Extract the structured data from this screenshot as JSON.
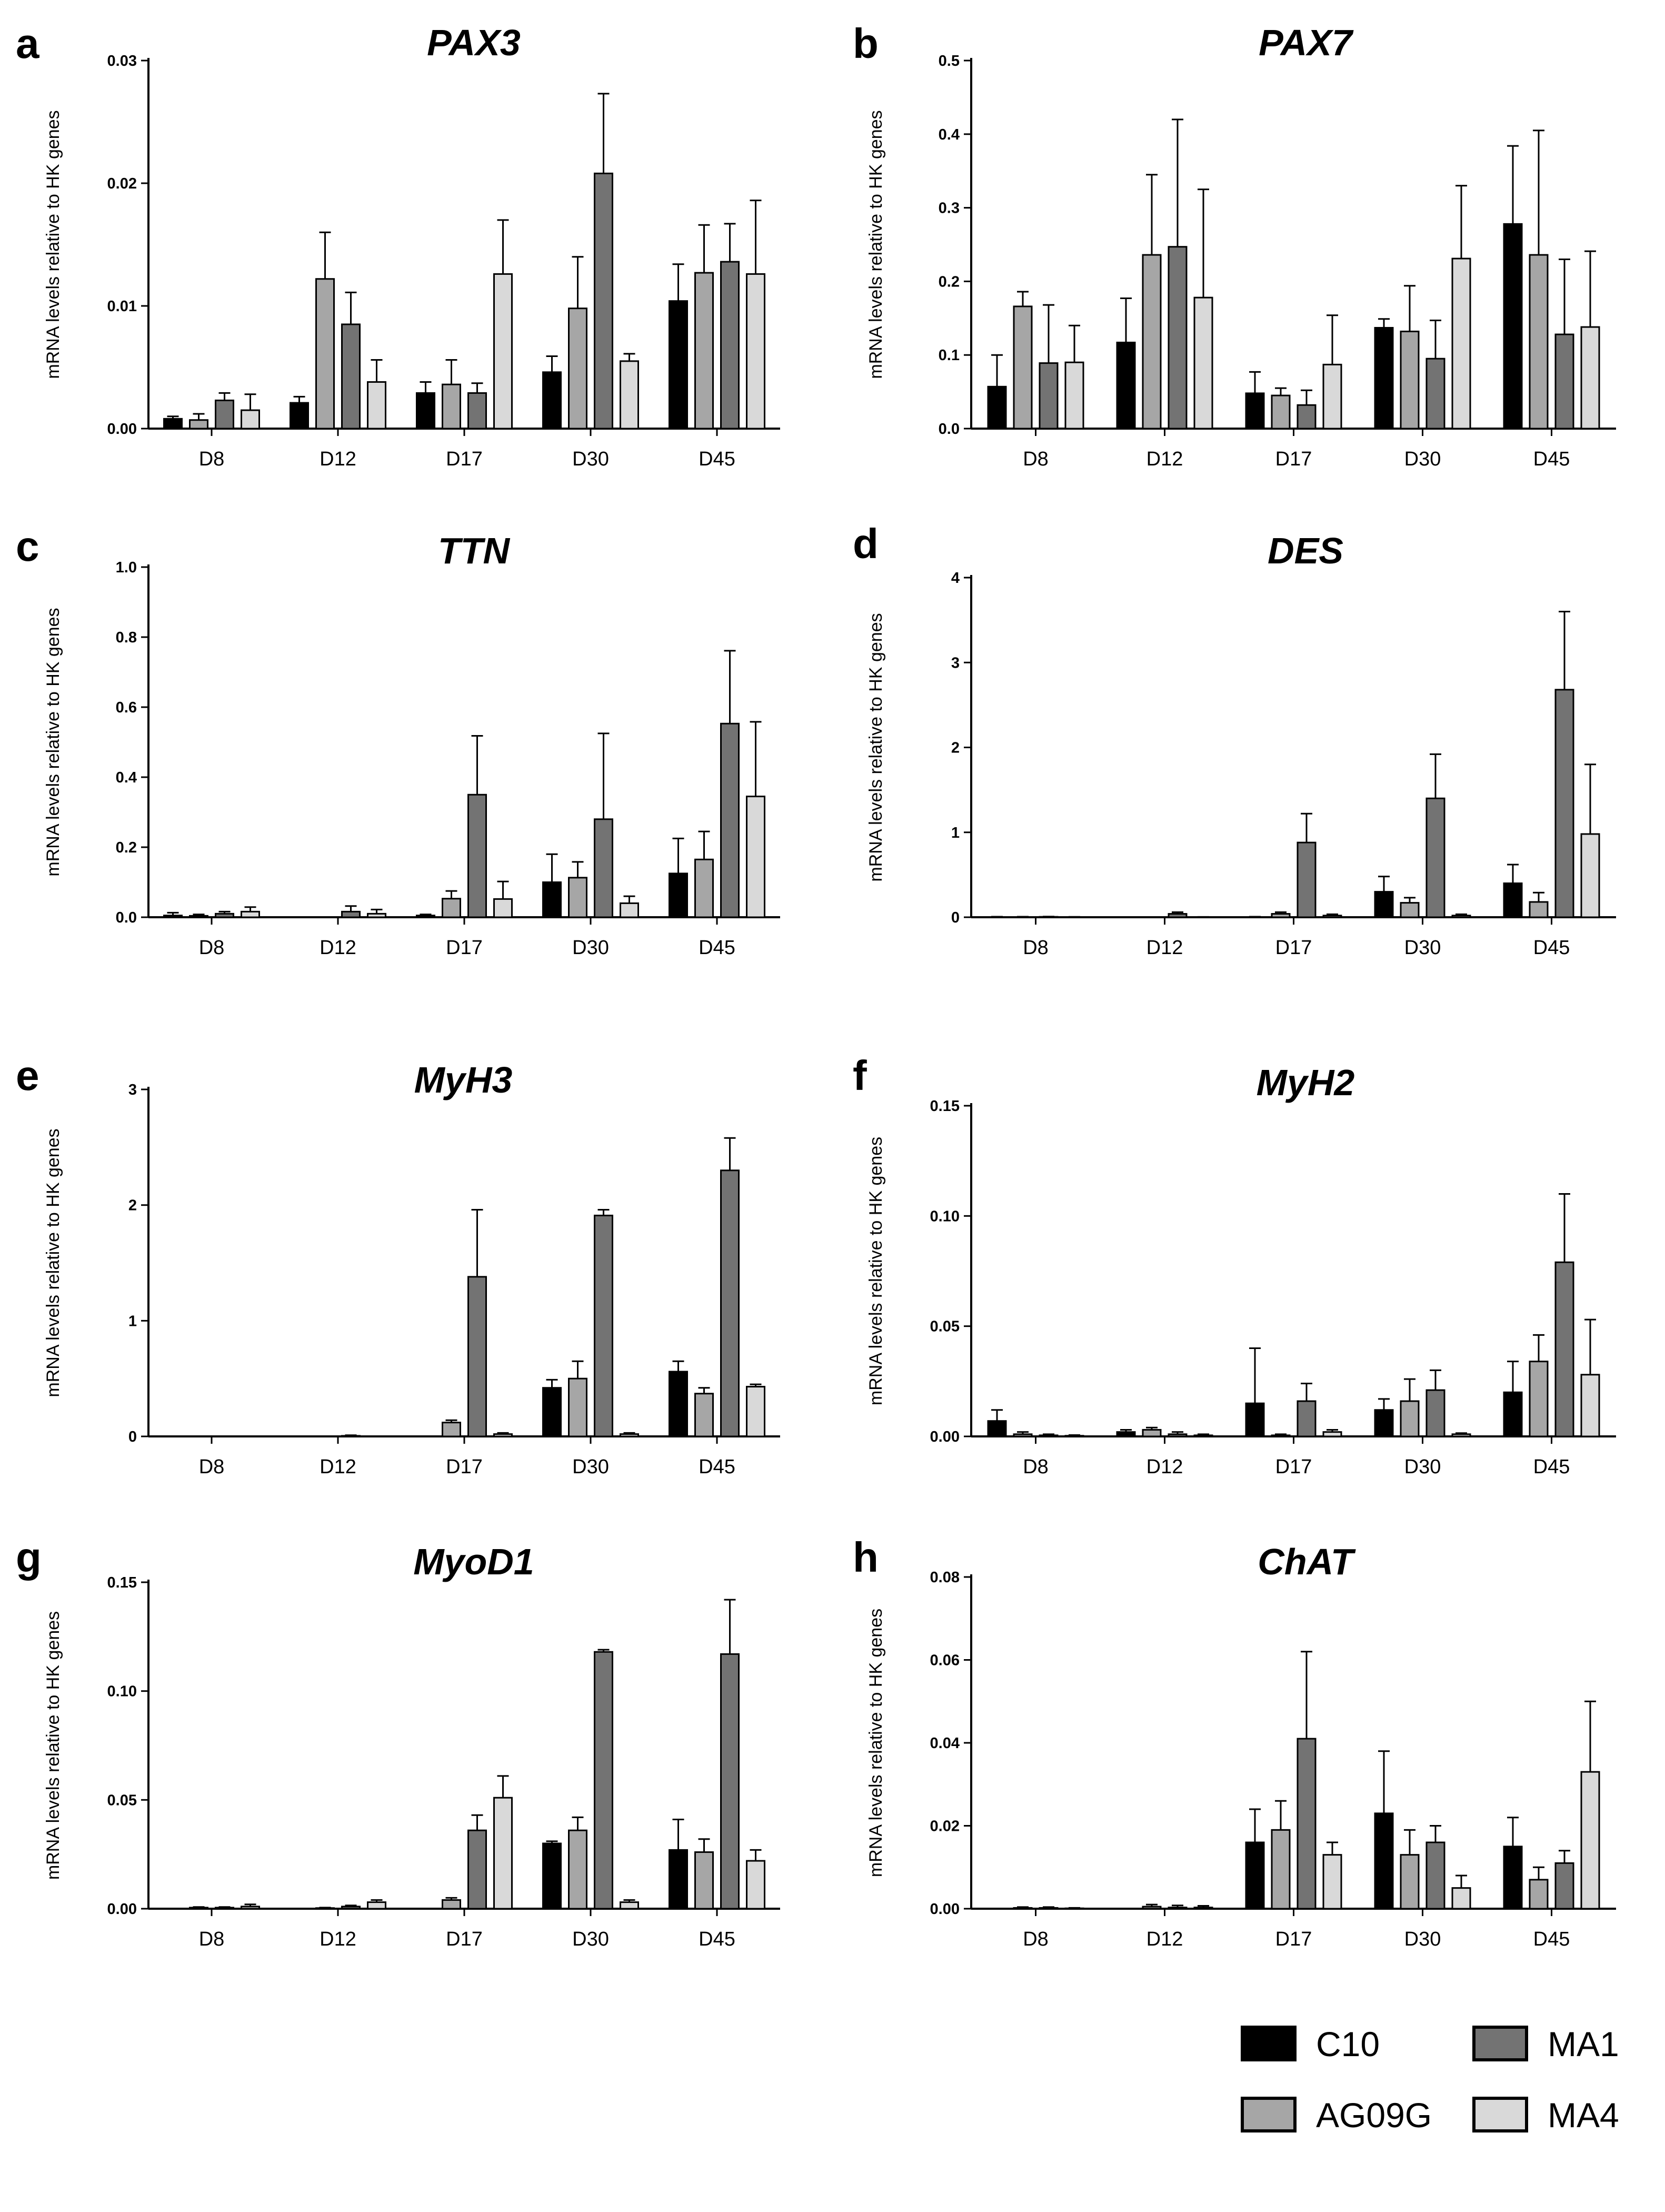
{
  "legend": [
    {
      "name": "C10",
      "color": "#000000"
    },
    {
      "name": "AG09G",
      "color": "#a6a6a6"
    },
    {
      "name": "MA1",
      "color": "#737373"
    },
    {
      "name": "MA4",
      "color": "#d9d9d9"
    }
  ],
  "chart_data": [
    {
      "panel": "a",
      "title": "PAX3",
      "type": "bar",
      "ylabel": "mRNA levels relative to HK genes",
      "categories": [
        "D8",
        "D12",
        "D17",
        "D30",
        "D45"
      ],
      "ylim": [
        0,
        0.03
      ],
      "yticks": [
        "0.00",
        "0.01",
        "0.02",
        "0.03"
      ],
      "series": [
        {
          "name": "C10",
          "values": [
            0.0008,
            0.0021,
            0.0029,
            0.0046,
            0.0104
          ],
          "errors": [
            0.0002,
            0.0005,
            0.0009,
            0.0013,
            0.003
          ]
        },
        {
          "name": "AG09G",
          "values": [
            0.0007,
            0.0122,
            0.0036,
            0.0098,
            0.0127
          ],
          "errors": [
            0.0005,
            0.0038,
            0.002,
            0.0042,
            0.0039
          ]
        },
        {
          "name": "MA1",
          "values": [
            0.0023,
            0.0085,
            0.0029,
            0.0208,
            0.0136
          ],
          "errors": [
            0.0006,
            0.0026,
            0.0008,
            0.0065,
            0.0031
          ]
        },
        {
          "name": "MA4",
          "values": [
            0.0015,
            0.0038,
            0.0126,
            0.0055,
            0.0126
          ],
          "errors": [
            0.0013,
            0.0018,
            0.0044,
            0.0006,
            0.006
          ]
        }
      ]
    },
    {
      "panel": "b",
      "title": "PAX7",
      "type": "bar",
      "ylabel": "mRNA levels relative to HK genes",
      "categories": [
        "D8",
        "D12",
        "D17",
        "D30",
        "D45"
      ],
      "ylim": [
        0,
        0.5
      ],
      "yticks": [
        "0.0",
        "0.1",
        "0.2",
        "0.3",
        "0.4",
        "0.5"
      ],
      "series": [
        {
          "name": "C10",
          "values": [
            0.057,
            0.117,
            0.048,
            0.137,
            0.278
          ],
          "errors": [
            0.043,
            0.06,
            0.029,
            0.012,
            0.106
          ]
        },
        {
          "name": "AG09G",
          "values": [
            0.166,
            0.236,
            0.045,
            0.132,
            0.236
          ],
          "errors": [
            0.02,
            0.109,
            0.01,
            0.062,
            0.169
          ]
        },
        {
          "name": "MA1",
          "values": [
            0.089,
            0.247,
            0.032,
            0.095,
            0.128
          ],
          "errors": [
            0.079,
            0.173,
            0.02,
            0.052,
            0.102
          ]
        },
        {
          "name": "MA4",
          "values": [
            0.09,
            0.178,
            0.087,
            0.231,
            0.138
          ],
          "errors": [
            0.05,
            0.147,
            0.067,
            0.099,
            0.103
          ]
        }
      ]
    },
    {
      "panel": "c",
      "title": "TTN",
      "type": "bar",
      "ylabel": "mRNA levels relative to HK genes",
      "categories": [
        "D8",
        "D12",
        "D17",
        "D30",
        "D45"
      ],
      "ylim": [
        0,
        1.0
      ],
      "yticks": [
        "0.0",
        "0.2",
        "0.4",
        "0.6",
        "0.8",
        "1.0"
      ],
      "series": [
        {
          "name": "C10",
          "values": [
            0.005,
            0.0,
            0.005,
            0.1,
            0.125
          ],
          "errors": [
            0.008,
            0.0,
            0.003,
            0.08,
            0.1
          ]
        },
        {
          "name": "AG09G",
          "values": [
            0.004,
            0.0,
            0.053,
            0.113,
            0.165
          ],
          "errors": [
            0.004,
            0.0,
            0.022,
            0.045,
            0.08
          ]
        },
        {
          "name": "MA1",
          "values": [
            0.01,
            0.016,
            0.35,
            0.28,
            0.553
          ],
          "errors": [
            0.006,
            0.016,
            0.168,
            0.245,
            0.208
          ]
        },
        {
          "name": "MA4",
          "values": [
            0.016,
            0.01,
            0.052,
            0.04,
            0.345
          ],
          "errors": [
            0.013,
            0.012,
            0.05,
            0.02,
            0.213
          ]
        }
      ]
    },
    {
      "panel": "d",
      "title": "DES",
      "type": "bar",
      "ylabel": "mRNA levels relative to HK genes",
      "categories": [
        "D8",
        "D12",
        "D17",
        "D30",
        "D45"
      ],
      "ylim": [
        0,
        4
      ],
      "yticks": [
        "0",
        "1",
        "2",
        "3",
        "4"
      ],
      "series": [
        {
          "name": "C10",
          "values": [
            0.003,
            0.0,
            0.003,
            0.3,
            0.4
          ],
          "errors": [
            0.003,
            0.0,
            0.003,
            0.18,
            0.22
          ]
        },
        {
          "name": "AG09G",
          "values": [
            0.003,
            0.0,
            0.04,
            0.17,
            0.18
          ],
          "errors": [
            0.003,
            0.0,
            0.02,
            0.06,
            0.11
          ]
        },
        {
          "name": "MA1",
          "values": [
            0.005,
            0.04,
            0.88,
            1.4,
            2.68
          ],
          "errors": [
            0.003,
            0.02,
            0.34,
            0.52,
            0.92
          ]
        },
        {
          "name": "MA4",
          "values": [
            0.003,
            0.002,
            0.02,
            0.02,
            0.98
          ],
          "errors": [
            0.002,
            0.002,
            0.015,
            0.015,
            0.82
          ]
        }
      ]
    },
    {
      "panel": "e",
      "title": "MyH3",
      "type": "bar",
      "ylabel": "mRNA levels relative to HK genes",
      "categories": [
        "D8",
        "D12",
        "D17",
        "D30",
        "D45"
      ],
      "ylim": [
        0,
        3
      ],
      "yticks": [
        "0",
        "1",
        "2",
        "3"
      ],
      "series": [
        {
          "name": "C10",
          "values": [
            0.0,
            0.0,
            0.0,
            0.42,
            0.56
          ],
          "errors": [
            0.0,
            0.0,
            0.0,
            0.07,
            0.09
          ]
        },
        {
          "name": "AG09G",
          "values": [
            0.0,
            0.0,
            0.12,
            0.5,
            0.37
          ],
          "errors": [
            0.0,
            0.0,
            0.02,
            0.15,
            0.05
          ]
        },
        {
          "name": "MA1",
          "values": [
            0.0,
            0.005,
            1.38,
            1.91,
            2.3
          ],
          "errors": [
            0.0,
            0.005,
            0.58,
            0.05,
            0.28
          ]
        },
        {
          "name": "MA4",
          "values": [
            0.0,
            0.0,
            0.02,
            0.02,
            0.43
          ],
          "errors": [
            0.0,
            0.0,
            0.01,
            0.01,
            0.02
          ]
        }
      ]
    },
    {
      "panel": "f",
      "title": "MyH2",
      "type": "bar",
      "ylabel": "mRNA levels relative to HK genes",
      "categories": [
        "D8",
        "D12",
        "D17",
        "D30",
        "D45"
      ],
      "ylim": [
        0,
        0.15
      ],
      "yticks": [
        "0.00",
        "0.05",
        "0.10",
        "0.15"
      ],
      "series": [
        {
          "name": "C10",
          "values": [
            0.007,
            0.002,
            0.015,
            0.012,
            0.02
          ],
          "errors": [
            0.005,
            0.001,
            0.025,
            0.005,
            0.014
          ]
        },
        {
          "name": "AG09G",
          "values": [
            0.001,
            0.003,
            0.0005,
            0.016,
            0.034
          ],
          "errors": [
            0.001,
            0.001,
            0.0005,
            0.01,
            0.012
          ]
        },
        {
          "name": "MA1",
          "values": [
            0.0005,
            0.001,
            0.016,
            0.021,
            0.079
          ],
          "errors": [
            0.0005,
            0.001,
            0.008,
            0.009,
            0.031
          ]
        },
        {
          "name": "MA4",
          "values": [
            0.0003,
            0.0005,
            0.002,
            0.001,
            0.028
          ],
          "errors": [
            0.0003,
            0.0005,
            0.001,
            0.0005,
            0.025
          ]
        }
      ]
    },
    {
      "panel": "g",
      "title": "MyoD1",
      "type": "bar",
      "ylabel": "mRNA levels relative to HK genes",
      "categories": [
        "D8",
        "D12",
        "D17",
        "D30",
        "D45"
      ],
      "ylim": [
        0,
        0.15
      ],
      "yticks": [
        "0.00",
        "0.05",
        "0.10",
        "0.15"
      ],
      "series": [
        {
          "name": "C10",
          "values": [
            0.0,
            0.0,
            0.0,
            0.03,
            0.027
          ],
          "errors": [
            0.0,
            0.0,
            0.0,
            0.001,
            0.014
          ]
        },
        {
          "name": "AG09G",
          "values": [
            0.0005,
            0.0003,
            0.004,
            0.036,
            0.026
          ],
          "errors": [
            0.0003,
            0.0002,
            0.001,
            0.006,
            0.006
          ]
        },
        {
          "name": "MA1",
          "values": [
            0.0005,
            0.001,
            0.036,
            0.118,
            0.117
          ],
          "errors": [
            0.0003,
            0.0005,
            0.007,
            0.001,
            0.025
          ]
        },
        {
          "name": "MA4",
          "values": [
            0.001,
            0.003,
            0.051,
            0.003,
            0.022
          ],
          "errors": [
            0.001,
            0.001,
            0.01,
            0.001,
            0.005
          ]
        }
      ]
    },
    {
      "panel": "h",
      "title": "ChAT",
      "type": "bar",
      "ylabel": "mRNA levels relative to HK genes",
      "categories": [
        "D8",
        "D12",
        "D17",
        "D30",
        "D45"
      ],
      "ylim": [
        0,
        0.08
      ],
      "yticks": [
        "0.00",
        "0.02",
        "0.04",
        "0.06",
        "0.08"
      ],
      "series": [
        {
          "name": "C10",
          "values": [
            0.0,
            0.0,
            0.016,
            0.023,
            0.015
          ],
          "errors": [
            0.0,
            0.0,
            0.008,
            0.015,
            0.007
          ]
        },
        {
          "name": "AG09G",
          "values": [
            0.0002,
            0.0005,
            0.019,
            0.013,
            0.007
          ],
          "errors": [
            0.0002,
            0.0005,
            0.007,
            0.006,
            0.003
          ]
        },
        {
          "name": "MA1",
          "values": [
            0.0002,
            0.0003,
            0.041,
            0.016,
            0.011
          ],
          "errors": [
            0.0002,
            0.0005,
            0.021,
            0.004,
            0.003
          ]
        },
        {
          "name": "MA4",
          "values": [
            0.0001,
            0.0003,
            0.013,
            0.005,
            0.033
          ],
          "errors": [
            0.0001,
            0.0004,
            0.003,
            0.003,
            0.017
          ]
        }
      ]
    }
  ]
}
